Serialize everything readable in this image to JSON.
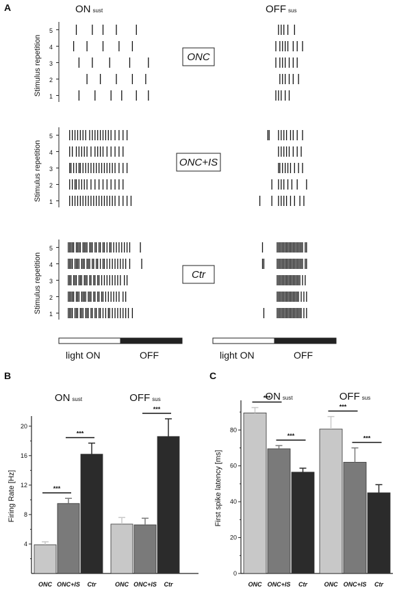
{
  "panels": {
    "a": "A",
    "b": "B",
    "c": "C"
  },
  "raster": {
    "ylabel": "Stimulus repetition",
    "repetitions": [
      "5",
      "4",
      "3",
      "2",
      "1"
    ],
    "on_title": {
      "main": "ON",
      "sub": "sust"
    },
    "off_title": {
      "main": "OFF",
      "sub": "sus"
    },
    "conditions": [
      {
        "label": "ONC",
        "on_spikes": [
          [
            0.1,
            0.22,
            0.3,
            0.4,
            0.55
          ],
          [
            0.08,
            0.18,
            0.3,
            0.42,
            0.52
          ],
          [
            0.12,
            0.22,
            0.35,
            0.5,
            0.64
          ],
          [
            0.18,
            0.28,
            0.4,
            0.52,
            0.62
          ],
          [
            0.12,
            0.24,
            0.36,
            0.44,
            0.55,
            0.64
          ]
        ],
        "off_spikes": [
          [
            0.82,
            0.84,
            0.86,
            0.89,
            0.94
          ],
          [
            0.8,
            0.83,
            0.85,
            0.87,
            0.89,
            0.93,
            0.96,
            1.0
          ],
          [
            0.8,
            0.83,
            0.85,
            0.87,
            0.9,
            0.93,
            0.96
          ],
          [
            0.83,
            0.85,
            0.87,
            0.9,
            0.93,
            0.97
          ],
          [
            0.8,
            0.82,
            0.84,
            0.87,
            0.9
          ]
        ]
      },
      {
        "label": "ONC+IS",
        "on_spikes": [
          [
            0.05,
            0.07,
            0.09,
            0.11,
            0.13,
            0.15,
            0.17,
            0.2,
            0.22,
            0.24,
            0.26,
            0.28,
            0.3,
            0.32,
            0.34,
            0.36,
            0.39,
            0.42,
            0.45,
            0.48
          ],
          [
            0.05,
            0.07,
            0.1,
            0.12,
            0.14,
            0.16,
            0.18,
            0.21,
            0.24,
            0.26,
            0.28,
            0.3,
            0.33,
            0.36,
            0.39,
            0.42,
            0.45
          ],
          [
            0.05,
            0.06,
            0.08,
            0.1,
            0.12,
            0.13,
            0.15,
            0.17,
            0.19,
            0.21,
            0.23,
            0.25,
            0.27,
            0.29,
            0.31,
            0.33,
            0.35,
            0.37,
            0.39,
            0.42,
            0.45,
            0.48
          ],
          [
            0.05,
            0.07,
            0.09,
            0.1,
            0.12,
            0.14,
            0.16,
            0.18,
            0.21,
            0.24,
            0.27,
            0.3,
            0.33,
            0.36,
            0.39,
            0.42,
            0.45
          ],
          [
            0.05,
            0.07,
            0.09,
            0.11,
            0.13,
            0.15,
            0.17,
            0.19,
            0.21,
            0.23,
            0.25,
            0.27,
            0.29,
            0.31,
            0.33,
            0.35,
            0.37,
            0.39,
            0.42,
            0.45,
            0.48,
            0.51
          ]
        ],
        "off_spikes": [
          [
            0.74,
            0.75,
            0.82,
            0.84,
            0.86,
            0.88,
            0.91,
            0.93,
            0.96,
            1.0
          ],
          [
            0.82,
            0.84,
            0.86,
            0.88,
            0.9,
            0.93,
            0.96,
            0.99
          ],
          [
            0.82,
            0.83,
            0.85,
            0.87,
            0.89,
            0.91,
            0.94,
            0.97,
            1.0
          ],
          [
            0.77,
            0.82,
            0.84,
            0.86,
            0.89,
            0.92,
            0.96,
            1.03
          ],
          [
            0.68,
            0.77,
            0.82,
            0.84,
            0.86,
            0.88,
            0.91,
            0.94,
            0.98,
            1.01
          ]
        ]
      },
      {
        "label": "Ctr",
        "on_spikes": [
          [
            0.04,
            0.05,
            0.06,
            0.07,
            0.08,
            0.1,
            0.11,
            0.12,
            0.13,
            0.15,
            0.16,
            0.17,
            0.18,
            0.2,
            0.21,
            0.22,
            0.24,
            0.25,
            0.27,
            0.28,
            0.3,
            0.31,
            0.33,
            0.35,
            0.36,
            0.38,
            0.4,
            0.42,
            0.44,
            0.46,
            0.48,
            0.5,
            0.58
          ],
          [
            0.04,
            0.05,
            0.06,
            0.07,
            0.09,
            0.1,
            0.11,
            0.12,
            0.14,
            0.15,
            0.16,
            0.18,
            0.19,
            0.2,
            0.22,
            0.23,
            0.25,
            0.26,
            0.28,
            0.3,
            0.31,
            0.33,
            0.35,
            0.37,
            0.39,
            0.41,
            0.43,
            0.45,
            0.47,
            0.5,
            0.59
          ],
          [
            0.04,
            0.05,
            0.06,
            0.08,
            0.09,
            0.1,
            0.12,
            0.13,
            0.14,
            0.16,
            0.17,
            0.18,
            0.2,
            0.21,
            0.23,
            0.24,
            0.26,
            0.27,
            0.29,
            0.31,
            0.33,
            0.35,
            0.37,
            0.39,
            0.41,
            0.43,
            0.46,
            0.48
          ],
          [
            0.04,
            0.05,
            0.06,
            0.07,
            0.08,
            0.1,
            0.11,
            0.12,
            0.14,
            0.15,
            0.16,
            0.17,
            0.19,
            0.2,
            0.21,
            0.23,
            0.24,
            0.26,
            0.27,
            0.29,
            0.3,
            0.32,
            0.34,
            0.36,
            0.38,
            0.4,
            0.42,
            0.45,
            0.47
          ],
          [
            0.04,
            0.05,
            0.06,
            0.07,
            0.09,
            0.1,
            0.11,
            0.13,
            0.14,
            0.15,
            0.17,
            0.18,
            0.19,
            0.21,
            0.22,
            0.24,
            0.25,
            0.27,
            0.28,
            0.3,
            0.32,
            0.34,
            0.35,
            0.37,
            0.39,
            0.41,
            0.43,
            0.45,
            0.47,
            0.49,
            0.52
          ]
        ],
        "off_spikes": [
          [
            0.7,
            0.81,
            0.82,
            0.83,
            0.84,
            0.85,
            0.86,
            0.87,
            0.88,
            0.89,
            0.9,
            0.91,
            0.92,
            0.93,
            0.94,
            0.95,
            0.96,
            0.97,
            0.98,
            0.99,
            1.0,
            1.02,
            1.03
          ],
          [
            0.7,
            0.71,
            0.81,
            0.82,
            0.83,
            0.84,
            0.85,
            0.86,
            0.87,
            0.88,
            0.89,
            0.9,
            0.91,
            0.92,
            0.93,
            0.94,
            0.95,
            0.96,
            0.97,
            0.98,
            0.99,
            1.0,
            1.02,
            1.03
          ],
          [
            0.81,
            0.82,
            0.83,
            0.84,
            0.85,
            0.86,
            0.87,
            0.88,
            0.89,
            0.9,
            0.91,
            0.92,
            0.93,
            0.94,
            0.95,
            0.96,
            0.97,
            0.98,
            1.0,
            1.02
          ],
          [
            0.81,
            0.82,
            0.83,
            0.84,
            0.85,
            0.86,
            0.87,
            0.88,
            0.89,
            0.9,
            0.91,
            0.92,
            0.93,
            0.94,
            0.95,
            0.96,
            0.97,
            0.99,
            1.01,
            1.03
          ],
          [
            0.71,
            0.81,
            0.82,
            0.83,
            0.84,
            0.85,
            0.86,
            0.87,
            0.88,
            0.89,
            0.9,
            0.91,
            0.92,
            0.93,
            0.94,
            0.95,
            0.96,
            0.97,
            0.98,
            0.99,
            1.01,
            1.03
          ]
        ]
      }
    ],
    "stimulus_bar": {
      "on_label": "light ON",
      "off_label": "OFF"
    }
  },
  "chart_data": [
    {
      "type": "bar",
      "panel": "B",
      "ylabel": "Firing Rate [Hz]",
      "ylim": [
        0,
        21
      ],
      "yticks": [
        "4",
        "8",
        "12",
        "16",
        "20"
      ],
      "groups": [
        {
          "title": "ON",
          "title_sub": "sust",
          "categories": [
            "ONC",
            "ONC+IS",
            "Ctr"
          ],
          "values": [
            3.9,
            9.5,
            16.2
          ],
          "errors": [
            0.4,
            0.7,
            1.5
          ],
          "significance": [
            {
              "pair": [
                0,
                1
              ],
              "label": "***"
            },
            {
              "pair": [
                1,
                2
              ],
              "label": "***"
            }
          ]
        },
        {
          "title": "OFF",
          "title_sub": "sus",
          "categories": [
            "ONC",
            "ONC+IS",
            "Ctr"
          ],
          "values": [
            6.7,
            6.6,
            18.6
          ],
          "errors": [
            0.9,
            0.9,
            2.4
          ],
          "significance": [
            {
              "pair": [
                1,
                2
              ],
              "label": "***"
            }
          ]
        }
      ],
      "colors": [
        "#c8c8c8",
        "#7a7a7a",
        "#2b2b2b"
      ]
    },
    {
      "type": "bar",
      "panel": "C",
      "ylabel": "First spike latency [ms]",
      "ylim": [
        0,
        95
      ],
      "yticks": [
        "0",
        "20",
        "40",
        "60",
        "80"
      ],
      "groups": [
        {
          "title": "ON",
          "title_sub": "sust",
          "categories": [
            "ONC",
            "ONC+IS",
            "Ctr"
          ],
          "values": [
            89.5,
            69.5,
            56.5
          ],
          "errors": [
            3.0,
            1.8,
            2.2
          ],
          "significance": [
            {
              "pair": [
                0,
                1
              ],
              "label": "***"
            },
            {
              "pair": [
                1,
                2
              ],
              "label": "***"
            }
          ]
        },
        {
          "title": "OFF",
          "title_sub": "sus",
          "categories": [
            "ONC",
            "ONC+IS",
            "Ctr"
          ],
          "values": [
            80.5,
            62.0,
            45.0
          ],
          "errors": [
            7.0,
            8.0,
            4.5
          ],
          "significance": [
            {
              "pair": [
                0,
                1
              ],
              "label": "***"
            },
            {
              "pair": [
                1,
                2
              ],
              "label": "***"
            }
          ]
        }
      ],
      "colors": [
        "#c8c8c8",
        "#7a7a7a",
        "#2b2b2b"
      ]
    }
  ]
}
